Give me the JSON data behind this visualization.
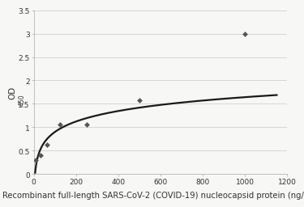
{
  "scatter_x": [
    10,
    31,
    62,
    125,
    250,
    500,
    1000
  ],
  "scatter_y": [
    0.3,
    0.4,
    0.62,
    1.05,
    1.06,
    1.57,
    3.0
  ],
  "xlim": [
    0,
    1200
  ],
  "ylim": [
    0,
    3.5
  ],
  "xticks": [
    0,
    200,
    400,
    600,
    800,
    1000,
    1200
  ],
  "yticks": [
    0,
    0.5,
    1.0,
    1.5,
    2.0,
    2.5,
    3.0,
    3.5
  ],
  "xlabel": "Recombinant full-length SARS-CoV-2 (COVID-19) nucleocapsid protein (ng/mL)",
  "ylabel": "OD",
  "ylabel_sub": "450",
  "marker_color": "#555555",
  "curve_color": "#1a1a1a",
  "grid_color": "#d0d0d0",
  "background_color": "#f7f7f5",
  "tick_fontsize": 6.5,
  "xlabel_fontsize": 7.2,
  "ylabel_fontsize": 7.5,
  "curve_fit_x": [
    10,
    31,
    62,
    125,
    250,
    500
  ],
  "curve_fit_y": [
    0.3,
    0.4,
    0.62,
    1.05,
    1.06,
    1.57
  ]
}
